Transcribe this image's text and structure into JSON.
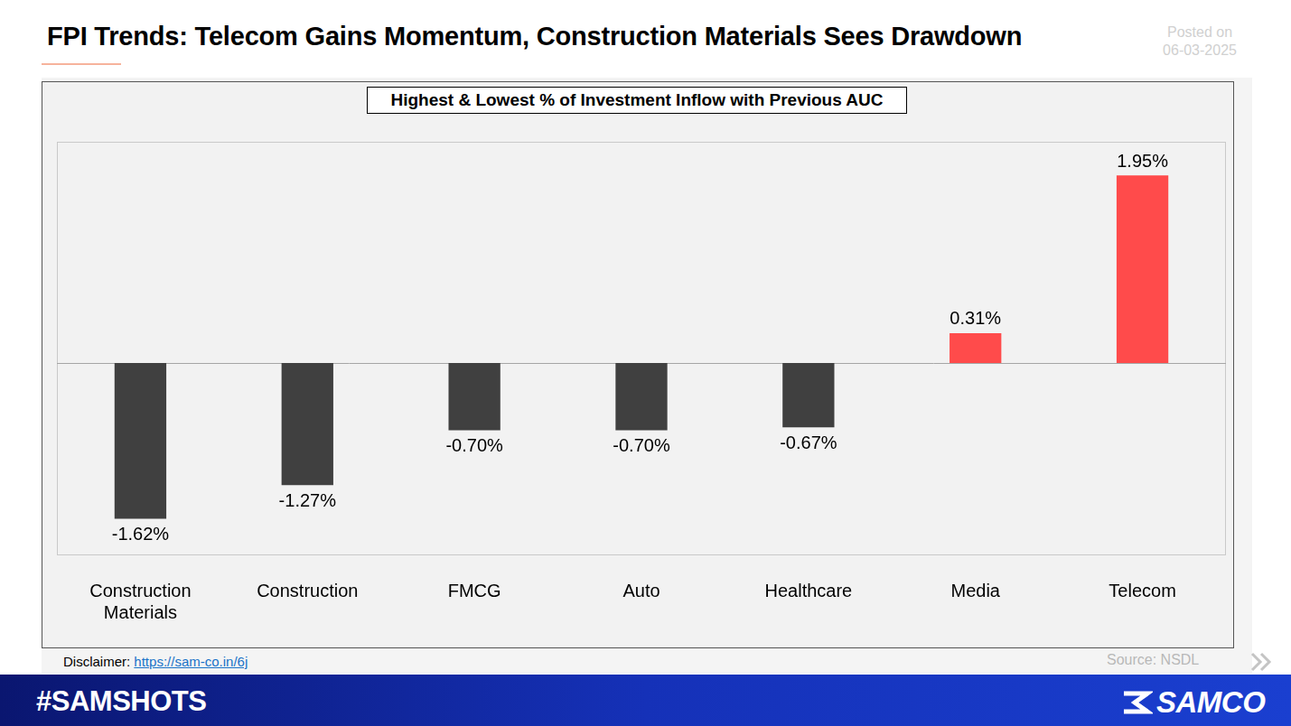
{
  "header": {
    "title": "FPI Trends: Telecom Gains Momentum, Construction Materials Sees Drawdown",
    "posted_label": "Posted on",
    "posted_date": "06-03-2025"
  },
  "chart_data": {
    "type": "bar",
    "title": "Highest & Lowest % of Investment Inflow with Previous AUC",
    "categories": [
      "Construction Materials",
      "Construction",
      "FMCG",
      "Auto",
      "Healthcare",
      "Media",
      "Telecom"
    ],
    "values": [
      -1.62,
      -1.27,
      -0.7,
      -0.7,
      -0.67,
      0.31,
      1.95
    ],
    "value_labels": [
      "-1.62%",
      "-1.27%",
      "-0.70%",
      "-0.70%",
      "-0.67%",
      "0.31%",
      "1.95%"
    ],
    "colors": [
      "#404040",
      "#404040",
      "#404040",
      "#404040",
      "#404040",
      "#ff4b4b",
      "#ff4b4b"
    ],
    "data_labels": true,
    "tick_labels": "x",
    "grid": false,
    "ylim": [
      -2.0,
      2.3
    ],
    "yticks": []
  },
  "footer": {
    "disclaimer_label": "Disclaimer:",
    "disclaimer_link": "https://sam-co.in/6j",
    "source": "Source: NSDL",
    "hashtag": "#SAMSHOTS",
    "brand": "SAMCO"
  }
}
